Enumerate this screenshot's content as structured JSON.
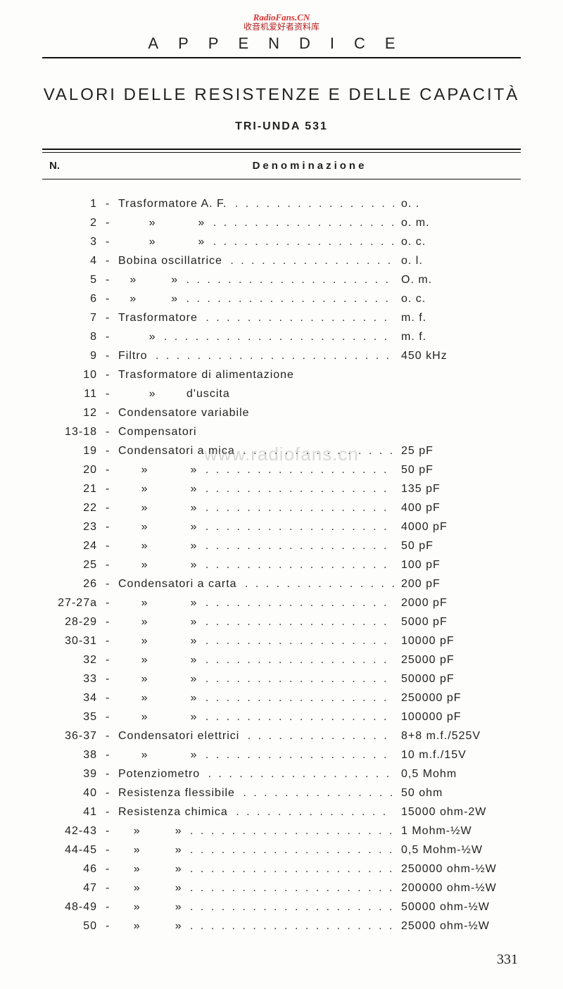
{
  "watermark": {
    "line1": "RadioFans.CN",
    "line2": "收音机爱好者资料库"
  },
  "center_watermark": "www.radiofans.cn",
  "header_letters": "APPENDICE",
  "title": "VALORI DELLE RESISTENZE E DELLE CAPACITÀ",
  "subtitle": "TRI-UNDA 531",
  "col_n": "N.",
  "col_d": "Denominazione",
  "page_number": "331",
  "rows": [
    {
      "n": "1",
      "desc": "Trasformatore A. F.",
      "dots": true,
      "val": "o.  ."
    },
    {
      "n": "2",
      "desc": "        »           »",
      "dots": true,
      "val": "o. m."
    },
    {
      "n": "3",
      "desc": "        »           »",
      "dots": true,
      "val": "o. c."
    },
    {
      "n": "4",
      "desc": "Bobina oscillatrice",
      "dots": true,
      "val": "o. l."
    },
    {
      "n": "5",
      "desc": "   »         »",
      "dots": true,
      "val": "O. m."
    },
    {
      "n": "6",
      "desc": "   »         »",
      "dots": true,
      "val": "o. c."
    },
    {
      "n": "7",
      "desc": "Trasformatore",
      "dots": true,
      "val": "m. f."
    },
    {
      "n": "8",
      "desc": "        »",
      "dots": true,
      "val": "m. f."
    },
    {
      "n": "9",
      "desc": "Filtro",
      "dots": true,
      "val": "450 kHz"
    },
    {
      "n": "10",
      "desc": "Trasformatore di alimentazione",
      "dots": false,
      "val": ""
    },
    {
      "n": "11",
      "desc": "        »        d'uscita",
      "dots": false,
      "val": ""
    },
    {
      "n": "12",
      "desc": "Condensatore variabile",
      "dots": false,
      "val": ""
    },
    {
      "n": "13-18",
      "desc": "Compensatori",
      "dots": false,
      "val": ""
    },
    {
      "n": "19",
      "desc": "Condensatori a mica",
      "dots": true,
      "val": "25 pF"
    },
    {
      "n": "20",
      "desc": "      »           »",
      "dots": true,
      "val": "50 pF"
    },
    {
      "n": "21",
      "desc": "      »           »",
      "dots": true,
      "val": "135 pF"
    },
    {
      "n": "22",
      "desc": "      »           »",
      "dots": true,
      "val": "400 pF"
    },
    {
      "n": "23",
      "desc": "      »           »",
      "dots": true,
      "val": "4000 pF"
    },
    {
      "n": "24",
      "desc": "      »           »",
      "dots": true,
      "val": "50 pF"
    },
    {
      "n": "25",
      "desc": "      »           »",
      "dots": true,
      "val": "100 pF"
    },
    {
      "n": "26",
      "desc": "Condensatori a carta",
      "dots": true,
      "val": "200 pF"
    },
    {
      "n": "27-27a",
      "desc": "      »           »",
      "dots": true,
      "val": "2000 pF"
    },
    {
      "n": "28-29",
      "desc": "      »           »",
      "dots": true,
      "val": "5000 pF"
    },
    {
      "n": "30-31",
      "desc": "      »           »",
      "dots": true,
      "val": "10000 pF"
    },
    {
      "n": "32",
      "desc": "      »           »",
      "dots": true,
      "val": "25000 pF"
    },
    {
      "n": "33",
      "desc": "      »           »",
      "dots": true,
      "val": "50000 pF"
    },
    {
      "n": "34",
      "desc": "      »           »",
      "dots": true,
      "val": "250000 pF"
    },
    {
      "n": "35",
      "desc": "      »           »",
      "dots": true,
      "val": "100000 pF"
    },
    {
      "n": "36-37",
      "desc": "Condensatori elettrici",
      "dots": true,
      "val": "8+8 m.f./525V"
    },
    {
      "n": "38",
      "desc": "      »           »",
      "dots": true,
      "val": "10 m.f./15V"
    },
    {
      "n": "39",
      "desc": "Potenziometro",
      "dots": true,
      "val": "0,5 Mohm"
    },
    {
      "n": "40",
      "desc": "Resistenza flessibile",
      "dots": true,
      "val": "50 ohm"
    },
    {
      "n": "41",
      "desc": "Resistenza chimica",
      "dots": true,
      "val": "15000 ohm-2W"
    },
    {
      "n": "42-43",
      "desc": "    »         »",
      "dots": true,
      "val": "1 Mohm-½W"
    },
    {
      "n": "44-45",
      "desc": "    »         »",
      "dots": true,
      "val": "0,5 Mohm-½W"
    },
    {
      "n": "46",
      "desc": "    »         »",
      "dots": true,
      "val": "250000 ohm-½W"
    },
    {
      "n": "47",
      "desc": "    »         »",
      "dots": true,
      "val": "200000 ohm-½W"
    },
    {
      "n": "48-49",
      "desc": "    »         »",
      "dots": true,
      "val": "50000 ohm-½W"
    },
    {
      "n": "50",
      "desc": "    »         »",
      "dots": true,
      "val": "25000 ohm-½W"
    }
  ]
}
